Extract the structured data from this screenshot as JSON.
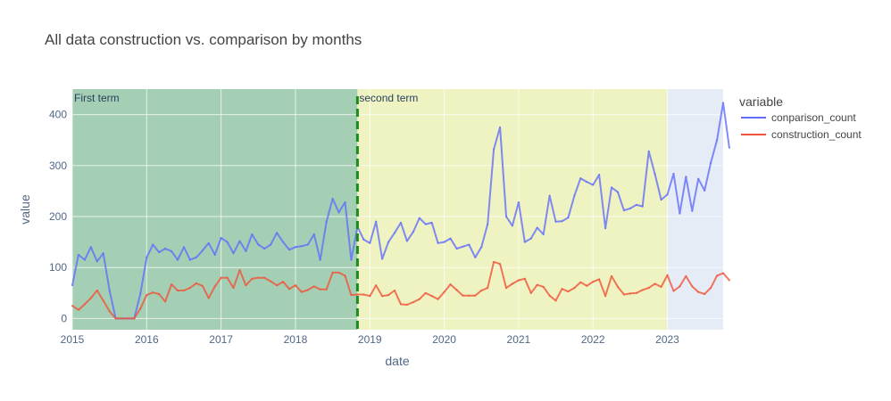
{
  "chart_data": {
    "type": "line",
    "title": "All data construction vs. comparison by months",
    "xlabel": "date",
    "ylabel": "value",
    "x_range": [
      "2015-01",
      "2023-10"
    ],
    "ylim": [
      -22,
      450
    ],
    "x_ticks": [
      "2015",
      "2016",
      "2017",
      "2018",
      "2019",
      "2020",
      "2021",
      "2022",
      "2023"
    ],
    "y_ticks": [
      0,
      100,
      200,
      300,
      400
    ],
    "grid": true,
    "legend_title": "variable",
    "legend_position": "right",
    "regions": [
      {
        "label": "First term",
        "start": "2015-01",
        "end": "2018-11",
        "color": "#8ec59e"
      },
      {
        "label": "second term",
        "start": "2018-11",
        "end": "2023-01",
        "color": "#f2f5b0"
      }
    ],
    "vline": {
      "x": "2018-11",
      "color": "#1a8a1a",
      "style": "dashed"
    },
    "start_month": "2015-01",
    "series": [
      {
        "name": "conparison_count",
        "color": "#636efa",
        "values": [
          65,
          125,
          115,
          140,
          112,
          128,
          55,
          0,
          0,
          0,
          0,
          50,
          120,
          145,
          130,
          137,
          132,
          115,
          140,
          115,
          120,
          133,
          148,
          125,
          158,
          150,
          128,
          152,
          132,
          165,
          145,
          137,
          145,
          168,
          150,
          135,
          140,
          142,
          145,
          165,
          115,
          190,
          235,
          208,
          228,
          115,
          180,
          155,
          148,
          190,
          117,
          150,
          168,
          188,
          152,
          170,
          197,
          185,
          188,
          148,
          150,
          157,
          137,
          141,
          145,
          120,
          140,
          185,
          332,
          375,
          200,
          182,
          228,
          150,
          157,
          178,
          165,
          241,
          190,
          191,
          198,
          241,
          275,
          268,
          262,
          282,
          177,
          257,
          248,
          212,
          216,
          223,
          220,
          328,
          283,
          233,
          243,
          284,
          206,
          278,
          211,
          274,
          251,
          305,
          350,
          423,
          335
        ]
      },
      {
        "name": "construction_count",
        "color": "#ef553b",
        "values": [
          25,
          17,
          28,
          40,
          55,
          35,
          14,
          0,
          0,
          0,
          0,
          20,
          46,
          51,
          48,
          33,
          67,
          55,
          55,
          60,
          69,
          64,
          40,
          63,
          80,
          80,
          60,
          95,
          65,
          78,
          80,
          80,
          73,
          65,
          72,
          58,
          65,
          52,
          56,
          63,
          57,
          57,
          90,
          90,
          84,
          46,
          47,
          47,
          44,
          65,
          44,
          46,
          55,
          28,
          27,
          32,
          38,
          50,
          44,
          38,
          52,
          67,
          56,
          45,
          45,
          45,
          55,
          60,
          111,
          107,
          60,
          68,
          75,
          78,
          50,
          66,
          62,
          45,
          35,
          58,
          53,
          60,
          71,
          64,
          72,
          77,
          44,
          83,
          62,
          47,
          49,
          50,
          56,
          60,
          68,
          62,
          85,
          54,
          63,
          83,
          63,
          52,
          48,
          60,
          84,
          89,
          75
        ]
      }
    ]
  }
}
